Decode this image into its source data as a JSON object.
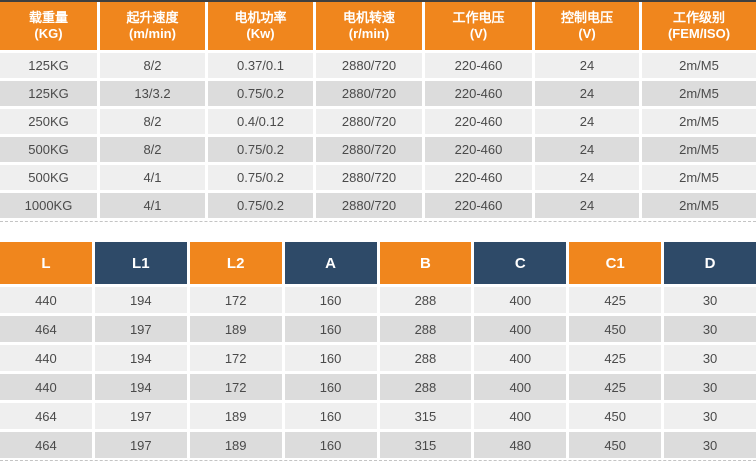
{
  "colors": {
    "orange": "#F0861D",
    "navy": "#2E4A68",
    "row_light": "#EFEFEF",
    "row_dark": "#DCDCDC",
    "cell_text": "#4A4A4A",
    "header_text": "#FFFFFF",
    "top_line": "#3F3F3F",
    "dashed": "#C4C4C4"
  },
  "spec_table": {
    "columns": [
      {
        "title": "载重量",
        "unit": "(KG)"
      },
      {
        "title": "起升速度",
        "unit": "(m/min)"
      },
      {
        "title": "电机功率",
        "unit": "(Kw)"
      },
      {
        "title": "电机转速",
        "unit": "(r/min)"
      },
      {
        "title": "工作电压",
        "unit": "(V)"
      },
      {
        "title": "控制电压",
        "unit": "(V)"
      },
      {
        "title": "工作级别",
        "unit": "(FEM/ISO)"
      }
    ],
    "rows": [
      [
        "125KG",
        "8/2",
        "0.37/0.1",
        "2880/720",
        "220-460",
        "24",
        "2m/M5"
      ],
      [
        "125KG",
        "13/3.2",
        "0.75/0.2",
        "2880/720",
        "220-460",
        "24",
        "2m/M5"
      ],
      [
        "250KG",
        "8/2",
        "0.4/0.12",
        "2880/720",
        "220-460",
        "24",
        "2m/M5"
      ],
      [
        "500KG",
        "8/2",
        "0.75/0.2",
        "2880/720",
        "220-460",
        "24",
        "2m/M5"
      ],
      [
        "500KG",
        "4/1",
        "0.75/0.2",
        "2880/720",
        "220-460",
        "24",
        "2m/M5"
      ],
      [
        "1000KG",
        "4/1",
        "0.75/0.2",
        "2880/720",
        "220-460",
        "24",
        "2m/M5"
      ]
    ]
  },
  "dimension_table": {
    "columns": [
      {
        "label": "L",
        "color": "orange"
      },
      {
        "label": "L1",
        "color": "navy"
      },
      {
        "label": "L2",
        "color": "orange"
      },
      {
        "label": "A",
        "color": "navy"
      },
      {
        "label": "B",
        "color": "orange"
      },
      {
        "label": "C",
        "color": "navy"
      },
      {
        "label": "C1",
        "color": "orange"
      },
      {
        "label": "D",
        "color": "navy"
      }
    ],
    "rows": [
      [
        "440",
        "194",
        "172",
        "160",
        "288",
        "400",
        "425",
        "30"
      ],
      [
        "464",
        "197",
        "189",
        "160",
        "288",
        "400",
        "450",
        "30"
      ],
      [
        "440",
        "194",
        "172",
        "160",
        "288",
        "400",
        "425",
        "30"
      ],
      [
        "440",
        "194",
        "172",
        "160",
        "288",
        "400",
        "425",
        "30"
      ],
      [
        "464",
        "197",
        "189",
        "160",
        "315",
        "400",
        "450",
        "30"
      ],
      [
        "464",
        "197",
        "189",
        "160",
        "315",
        "480",
        "450",
        "30"
      ]
    ]
  }
}
